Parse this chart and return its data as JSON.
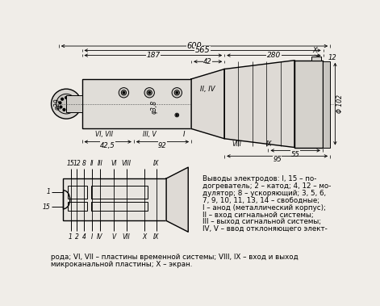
{
  "bg_color": "#f0ede8",
  "fig_width": 4.71,
  "fig_height": 3.79,
  "dpi": 100,
  "description_lines": [
    "Выводы электродов: I, 15 – по-",
    "догреватель; 2 – катод; 4, 12 – мо-",
    "дулятор; 8 – ускоряющий; 3, 5, 6,",
    "7, 9, 10, 11, 13, 14 – свободные;",
    "I – анод (металлический корпус);",
    "II – вход сигнальной системы;",
    "III – выход сигнальной системы;",
    "IV, V – ввод отклоняющего элект-"
  ],
  "description_bottom1": "рода; VI, VII – пластины временной системы; VIII, IX – вход и выход",
  "description_bottom2": "микроканальной пластины; X – экран."
}
